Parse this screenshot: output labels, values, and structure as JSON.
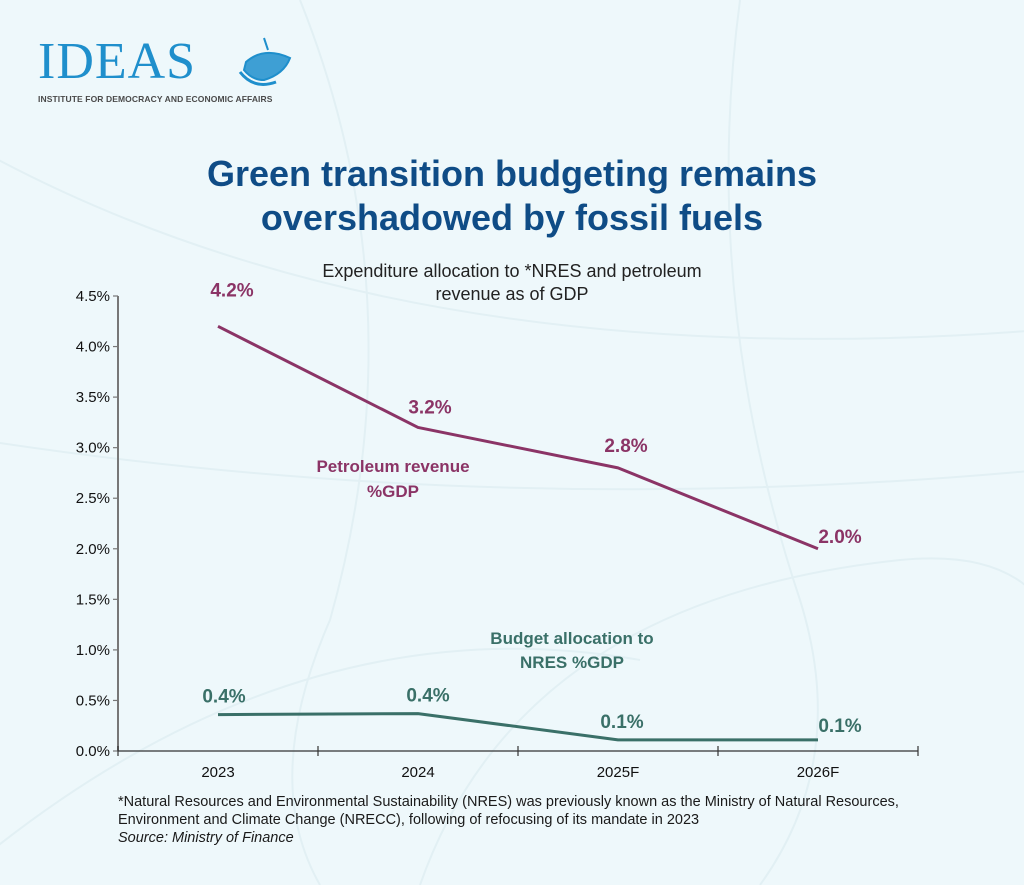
{
  "logo": {
    "name": "IDEAS",
    "tagline": "INSTITUTE FOR DEMOCRACY AND ECONOMIC AFFAIRS"
  },
  "title_line1": "Green transition budgeting remains",
  "title_line2": "overshadowed by fossil fuels",
  "footnote": {
    "text": "*Natural Resources and Environmental Sustainability (NRES) was previously known as the Ministry of Natural Resources, Environment and Climate Change (NRECC), following of refocusing of its mandate in 2023",
    "source": "Source: Ministry of Finance"
  },
  "colors": {
    "petroleum": "#8b3466",
    "nres": "#3a7068",
    "title": "#0f4c86",
    "brand": "#1f8fcc"
  },
  "chart_data": {
    "type": "line",
    "title": "Expenditure allocation to *NRES and petroleum revenue as of GDP",
    "title_lines": [
      "Expenditure allocation to *NRES and petroleum",
      "revenue as of GDP"
    ],
    "xlabel": "",
    "ylabel": "",
    "categories": [
      "2023",
      "2024",
      "2025F",
      "2026F"
    ],
    "ylim": [
      0,
      4.5
    ],
    "yticks": [
      0,
      0.5,
      1.0,
      1.5,
      2.0,
      2.5,
      3.0,
      3.5,
      4.0,
      4.5
    ],
    "ytick_labels": [
      "0.0%",
      "0.5%",
      "1.0%",
      "1.5%",
      "2.0%",
      "2.5%",
      "3.0%",
      "3.5%",
      "4.0%",
      "4.5%"
    ],
    "grid": false,
    "legend": "inline-labels",
    "series": [
      {
        "name": "Petroleum revenue %GDP",
        "label_lines": [
          "Petroleum revenue",
          "%GDP"
        ],
        "values": [
          4.2,
          3.2,
          2.8,
          2.0
        ],
        "data_labels": [
          "4.2%",
          "3.2%",
          "2.8%",
          "2.0%"
        ],
        "color": "#8b3466"
      },
      {
        "name": "Budget allocation to NRES %GDP",
        "label_lines": [
          "Budget allocation to",
          "NRES %GDP"
        ],
        "values": [
          0.36,
          0.37,
          0.11,
          0.11
        ],
        "data_labels": [
          "0.4%",
          "0.4%",
          "0.1%",
          "0.1%"
        ],
        "color": "#3a7068"
      }
    ]
  }
}
